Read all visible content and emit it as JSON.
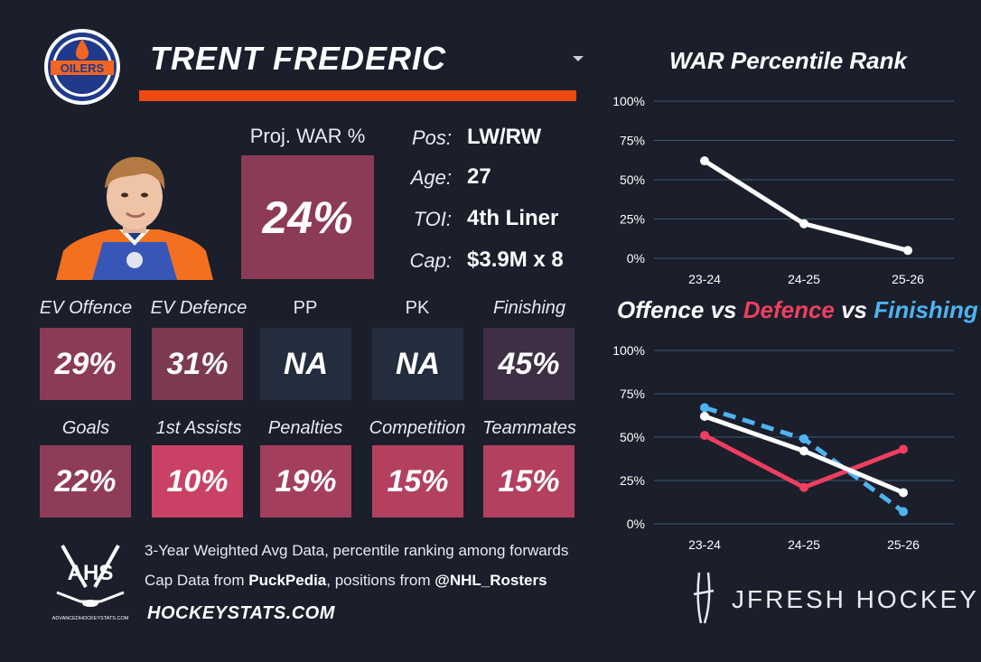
{
  "header": {
    "player_name": "TRENT FREDERIC",
    "team_logo_text": "OILERS"
  },
  "projection": {
    "label": "Proj. WAR %",
    "value": "24%"
  },
  "bio": [
    {
      "key": "Pos:",
      "value": "LW/RW"
    },
    {
      "key": "Age:",
      "value": "27"
    },
    {
      "key": "TOI:",
      "value": "4th Liner"
    },
    {
      "key": "Cap:",
      "value": "$3.9M x 8"
    }
  ],
  "stats_row1": [
    {
      "label": "EV Offence",
      "value": "29%",
      "color": "#8c3b56"
    },
    {
      "label": "EV Defence",
      "value": "31%",
      "color": "#7b3a52"
    },
    {
      "label": "PP",
      "value": "NA",
      "color": "#232d3d"
    },
    {
      "label": "PK",
      "value": "NA",
      "color": "#232d3d"
    },
    {
      "label": "Finishing",
      "value": "45%",
      "color": "#3e2f44"
    }
  ],
  "stats_row2": [
    {
      "label": "Goals",
      "value": "22%",
      "color": "#8f3c58"
    },
    {
      "label": "1st Assists",
      "value": "10%",
      "color": "#c94266"
    },
    {
      "label": "Penalties",
      "value": "19%",
      "color": "#a33e5d"
    },
    {
      "label": "Competition",
      "value": "15%",
      "color": "#b4405f"
    },
    {
      "label": "Teammates",
      "value": "15%",
      "color": "#b4405f"
    }
  ],
  "footer": {
    "line1": "3-Year Weighted Avg Data, percentile ranking among forwards",
    "line2_prefix": "Cap Data from ",
    "line2_source": "PuckPedia",
    "line2_middle": ", positions from ",
    "line2_handle": "@NHL_Rosters",
    "site": "HOCKEYSTATS.COM",
    "ahs_logo_text": "AHS",
    "ahs_logo_subtext": "ADVANCEDHOCKEYSTATS.COM",
    "brand": "JFRESH HOCKEY"
  },
  "chart_data": [
    {
      "type": "line",
      "title": "WAR Percentile Rank",
      "x": [
        "23-24",
        "24-25",
        "25-26"
      ],
      "ylim": [
        0,
        100
      ],
      "yticks": [
        "0%",
        "25%",
        "50%",
        "75%",
        "100%"
      ],
      "grid": true,
      "series": [
        {
          "values": [
            62,
            22,
            5
          ],
          "color": "#ffffff",
          "dash": false
        }
      ]
    },
    {
      "type": "line",
      "title_parts": [
        {
          "text": "Offence",
          "color": "#ffffff"
        },
        {
          "text": " vs ",
          "color": "#ffffff"
        },
        {
          "text": "Defence",
          "color": "#ef3e5f"
        },
        {
          "text": " vs ",
          "color": "#ffffff"
        },
        {
          "text": "Finishing",
          "color": "#4fb3f0"
        }
      ],
      "x": [
        "23-24",
        "24-25",
        "25-26"
      ],
      "ylim": [
        0,
        100
      ],
      "yticks": [
        "0%",
        "25%",
        "50%",
        "75%",
        "100%"
      ],
      "grid": true,
      "series": [
        {
          "name": "Finishing",
          "values": [
            67,
            49,
            7
          ],
          "color": "#4fb3f0",
          "dash": true
        },
        {
          "name": "Defence",
          "values": [
            51,
            21,
            43
          ],
          "color": "#ef3e5f",
          "dash": false
        },
        {
          "name": "Offence",
          "values": [
            62,
            42,
            18
          ],
          "color": "#ffffff",
          "dash": false
        }
      ]
    }
  ]
}
